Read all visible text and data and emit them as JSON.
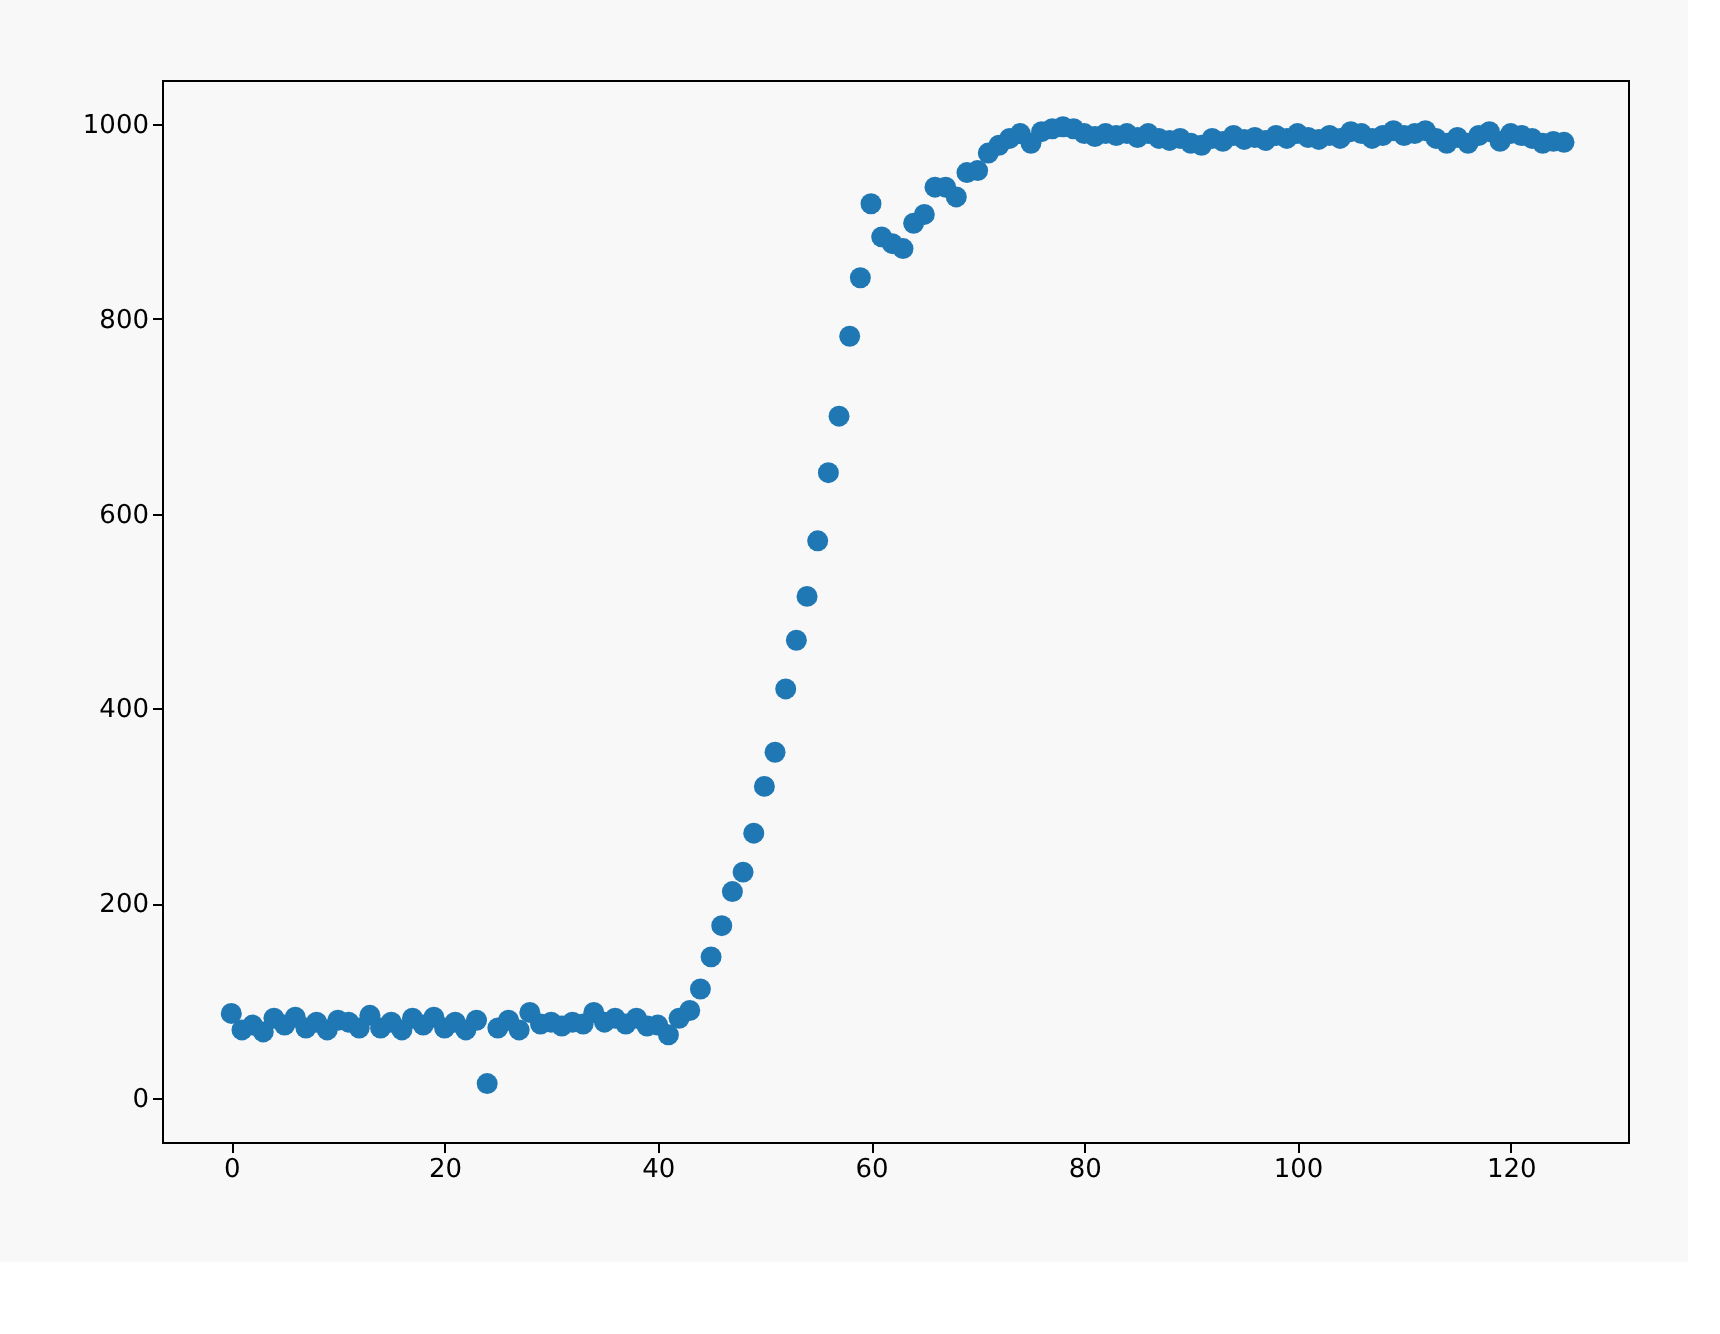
{
  "chart_data": {
    "type": "scatter",
    "marker": "circle",
    "grid": false,
    "legend": false,
    "x": [
      0,
      1,
      2,
      3,
      4,
      5,
      6,
      7,
      8,
      9,
      10,
      11,
      12,
      13,
      14,
      15,
      16,
      17,
      18,
      19,
      20,
      21,
      22,
      23,
      24,
      25,
      26,
      27,
      28,
      29,
      30,
      31,
      32,
      33,
      34,
      35,
      36,
      37,
      38,
      39,
      40,
      41,
      42,
      43,
      44,
      45,
      46,
      47,
      48,
      49,
      50,
      51,
      52,
      53,
      54,
      55,
      56,
      57,
      58,
      59,
      60,
      61,
      62,
      63,
      64,
      65,
      66,
      67,
      68,
      69,
      70,
      71,
      72,
      73,
      74,
      75,
      76,
      77,
      78,
      79,
      80,
      81,
      82,
      83,
      84,
      85,
      86,
      87,
      88,
      89,
      90,
      91,
      92,
      93,
      94,
      95,
      96,
      97,
      98,
      99,
      100,
      101,
      102,
      103,
      104,
      105,
      106,
      107,
      108,
      109,
      110,
      111,
      112,
      113,
      114,
      115,
      116,
      117,
      118,
      119,
      120,
      121,
      122,
      123,
      124,
      125
    ],
    "series": [
      {
        "color": "#1f77b4",
        "values": [
          87,
          70,
          75,
          68,
          82,
          75,
          83,
          72,
          78,
          70,
          80,
          78,
          72,
          85,
          72,
          78,
          70,
          82,
          75,
          83,
          72,
          78,
          70,
          80,
          15,
          72,
          80,
          70,
          88,
          76,
          78,
          74,
          78,
          76,
          88,
          78,
          82,
          76,
          82,
          74,
          75,
          65,
          82,
          90,
          112,
          145,
          177,
          212,
          232,
          272,
          320,
          355,
          420,
          470,
          515,
          572,
          642,
          700,
          782,
          842,
          918,
          884,
          877,
          872,
          898,
          907,
          935,
          935,
          925,
          950,
          952,
          970,
          978,
          985,
          990,
          980,
          992,
          995,
          997,
          995,
          990,
          987,
          990,
          988,
          990,
          986,
          990,
          985,
          983,
          985,
          980,
          978,
          985,
          982,
          988,
          984,
          986,
          983,
          988,
          985,
          990,
          986,
          984,
          988,
          985,
          992,
          990,
          985,
          988,
          993,
          988,
          990,
          993,
          985,
          980,
          986,
          980,
          988,
          992,
          982,
          990,
          988,
          985,
          980,
          982,
          981
        ]
      }
    ],
    "xlim": [
      -6.5,
      131
    ],
    "ylim": [
      -45,
      1045
    ],
    "xticks": [
      0,
      20,
      40,
      60,
      80,
      100,
      120
    ],
    "yticks": [
      0,
      200,
      400,
      600,
      800,
      1000
    ]
  }
}
